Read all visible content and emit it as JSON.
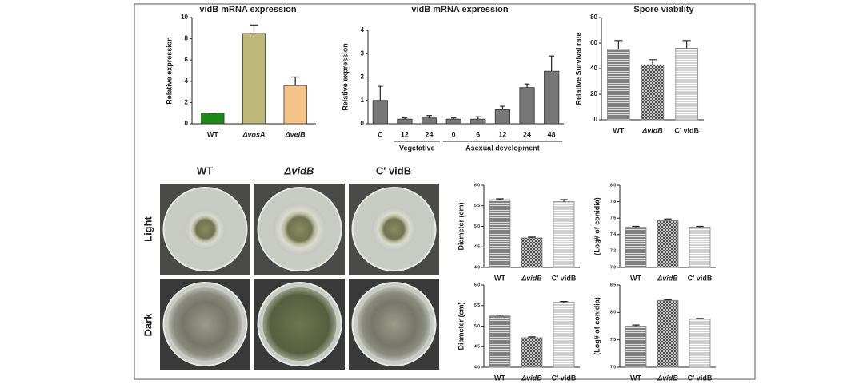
{
  "chart_data": [
    {
      "type": "bar",
      "title": "vidB mRNA expression",
      "ylabel": "Relative expression",
      "categories": [
        "WT",
        "ΔvosA",
        "ΔvelB"
      ],
      "values": [
        1,
        8.5,
        3.6
      ],
      "errors": [
        0,
        0.8,
        0.8
      ],
      "colors": [
        "#1a8a1a",
        "#bdb87a",
        "#f5c48a"
      ],
      "ylim": [
        0,
        10
      ],
      "yticks": [
        0,
        2,
        4,
        6,
        8,
        10
      ]
    },
    {
      "type": "bar",
      "title": "vidB mRNA expression",
      "ylabel": "Relative expression",
      "categories": [
        "C",
        "12",
        "24",
        "0",
        "6",
        "12",
        "24",
        "48"
      ],
      "values": [
        1.0,
        0.2,
        0.25,
        0.2,
        0.2,
        0.6,
        1.55,
        2.25
      ],
      "errors": [
        0.6,
        0.05,
        0.1,
        0.05,
        0.1,
        0.15,
        0.15,
        0.65
      ],
      "color": "#777777",
      "ylim": [
        0,
        4
      ],
      "yticks": [
        0,
        1,
        2,
        3,
        4
      ],
      "groups": [
        "Vegetative",
        "Asexual development"
      ]
    },
    {
      "type": "bar",
      "title": "Spore viability",
      "ylabel": "Relative Survival rate",
      "categories": [
        "WT",
        "ΔvidB",
        "C' vidB"
      ],
      "values": [
        55,
        43,
        56
      ],
      "errors": [
        7,
        4,
        6
      ],
      "color": "#888888",
      "hatched": true,
      "ylim": [
        0,
        80
      ],
      "yticks": [
        0,
        20,
        40,
        60,
        80
      ]
    },
    {
      "type": "bar",
      "ylabel": "Diameter (cm)",
      "categories": [
        "WT",
        "ΔvidB",
        "C' vidB"
      ],
      "values": [
        5.65,
        4.72,
        5.6
      ],
      "errors": [
        0.02,
        0.02,
        0.05
      ],
      "color": "#888888",
      "hatched": true,
      "ylim": [
        4.0,
        6.0
      ],
      "yticks": [
        {
          "value": 4,
          "label": "4.0"
        },
        4.5,
        {
          "value": 5,
          "label": "5.0"
        },
        5.5,
        {
          "value": 6,
          "label": "6.0"
        }
      ]
    },
    {
      "type": "bar",
      "ylabel": "(Log# of conidia)",
      "categories": [
        "WT",
        "ΔvidB",
        "C' vidB"
      ],
      "values": [
        7.49,
        7.57,
        7.49
      ],
      "errors": [
        0.01,
        0.02,
        0.01
      ],
      "color": "#888888",
      "hatched": true,
      "ylim": [
        7.0,
        8.0
      ],
      "yticks": [
        {
          "value": 7,
          "label": "7.0"
        },
        7.2,
        7.4,
        7.6,
        7.8,
        {
          "value": 8,
          "label": "8.0"
        }
      ]
    },
    {
      "type": "bar",
      "ylabel": "Diameter (cm)",
      "categories": [
        "WT",
        "ΔvidB",
        "C' vidB"
      ],
      "values": [
        5.25,
        4.72,
        5.58
      ],
      "errors": [
        0.02,
        0.02,
        0.02
      ],
      "color": "#888888",
      "hatched": true,
      "ylim": [
        4.0,
        6.0
      ],
      "yticks": [
        {
          "value": 4,
          "label": "4.0"
        },
        4.5,
        {
          "value": 5,
          "label": "5.0"
        },
        5.5,
        {
          "value": 6,
          "label": "6.0"
        }
      ]
    },
    {
      "type": "bar",
      "ylabel": "(Log# of conidia)",
      "categories": [
        "WT",
        "ΔvidB",
        "C' vidB"
      ],
      "values": [
        7.75,
        8.22,
        7.88
      ],
      "errors": [
        0.02,
        0.01,
        0.01
      ],
      "color": "#888888",
      "hatched": true,
      "ylim": [
        7.0,
        8.5
      ],
      "yticks": [
        {
          "value": 7,
          "label": "7.0"
        },
        7.5,
        {
          "value": 8,
          "label": "8.0"
        },
        8.5
      ]
    }
  ],
  "photo_panel": {
    "columns": [
      "WT",
      "ΔvidB",
      "C' vidB"
    ],
    "rows": [
      "Light",
      "Dark"
    ]
  }
}
